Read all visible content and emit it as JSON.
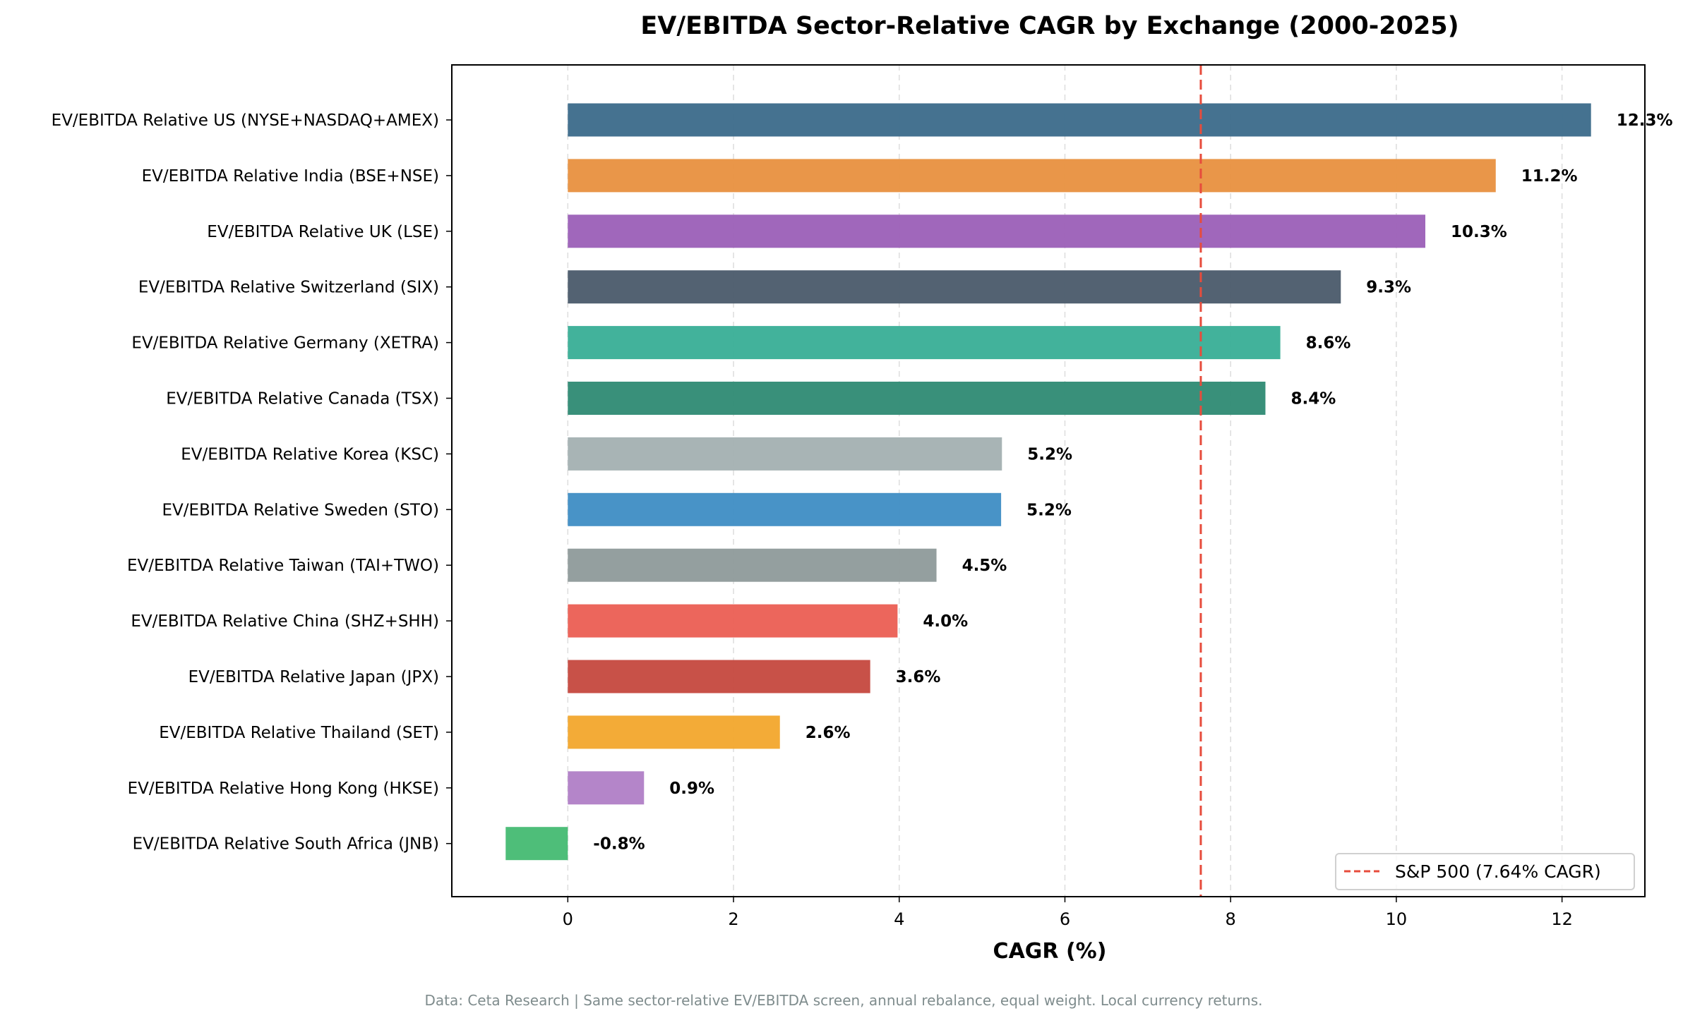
{
  "chart_data": {
    "type": "bar",
    "orientation": "horizontal",
    "title": "EV/EBITDA Sector-Relative CAGR by Exchange (2000-2025)",
    "xlabel": "CAGR (%)",
    "ylabel": "",
    "xlim": [
      -1.4,
      13.0
    ],
    "xticks": [
      0,
      2,
      4,
      6,
      8,
      10,
      12
    ],
    "grid": "x-dashed",
    "categories": [
      "EV/EBITDA Relative US (NYSE+NASDAQ+AMEX)",
      "EV/EBITDA Relative India (BSE+NSE)",
      "EV/EBITDA Relative UK (LSE)",
      "EV/EBITDA Relative Switzerland (SIX)",
      "EV/EBITDA Relative Germany (XETRA)",
      "EV/EBITDA Relative Canada (TSX)",
      "EV/EBITDA Relative Korea (KSC)",
      "EV/EBITDA Relative Sweden (STO)",
      "EV/EBITDA Relative Taiwan (TAI+TWO)",
      "EV/EBITDA Relative China (SHZ+SHH)",
      "EV/EBITDA Relative Japan (JPX)",
      "EV/EBITDA Relative Thailand (SET)",
      "EV/EBITDA Relative Hong Kong (HKSE)",
      "EV/EBITDA Relative South Africa (JNB)"
    ],
    "values": [
      12.35,
      11.2,
      10.35,
      9.33,
      8.6,
      8.42,
      5.24,
      5.23,
      4.45,
      3.98,
      3.65,
      2.56,
      0.92,
      -0.75
    ],
    "data_labels": [
      "12.3%",
      "11.2%",
      "10.3%",
      "9.3%",
      "8.6%",
      "8.4%",
      "5.2%",
      "5.2%",
      "4.5%",
      "4.0%",
      "3.6%",
      "2.6%",
      "0.9%",
      "-0.8%"
    ],
    "colors": [
      "#3b6a8a",
      "#e8903f",
      "#9b5fb7",
      "#4a5a6a",
      "#38ae96",
      "#2e8a73",
      "#a3b0b1",
      "#3e8dc4",
      "#8e9a9a",
      "#eb5e53",
      "#c5483e",
      "#f2a72c",
      "#b07ec6",
      "#44ba72"
    ],
    "reference_line": {
      "value": 7.64,
      "label": "S&P 500 (7.64% CAGR)",
      "color": "#e74c3c",
      "style": "dashed"
    },
    "legend": {
      "placement": "lower-right"
    },
    "footnote": "Data: Ceta Research | Same sector-relative EV/EBITDA screen, annual rebalance, equal weight. Local currency returns."
  }
}
